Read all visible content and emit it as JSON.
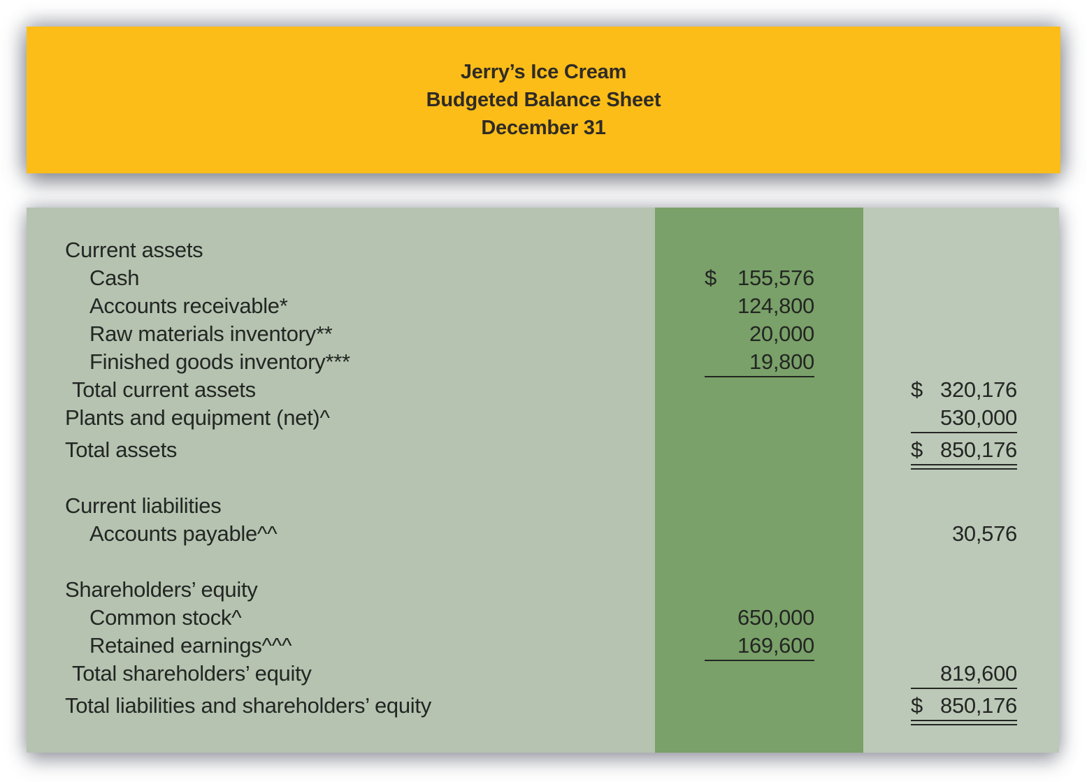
{
  "header": {
    "company": "Jerry’s Ice Cream",
    "statement": "Budgeted Balance Sheet",
    "date": "December 31"
  },
  "colors": {
    "header_bg": "#FCBD18",
    "header_ink": "#2F2B26",
    "panel_bg": "#B5C3B0",
    "band_col1_bg": "#7AA169",
    "band_col2_bg": "#BDC9B8",
    "ink": "#232623"
  },
  "sheet": {
    "rows": [
      {
        "label": "Current assets"
      },
      {
        "label": "Cash",
        "col1_cur": "$",
        "col1": "155,576"
      },
      {
        "label": "Accounts receivable*",
        "col1": "124,800"
      },
      {
        "label": "Raw materials inventory**",
        "col1": "20,000"
      },
      {
        "label": "Finished goods inventory***",
        "col1": "19,800"
      },
      {
        "label": "Total current assets",
        "col2_cur": "$",
        "col2": "320,176"
      },
      {
        "label": "Plants and equipment (net)^",
        "col2": "530,000"
      },
      {
        "label": "Total assets",
        "col2_cur": "$",
        "col2": "850,176"
      },
      {
        "label": "Current liabilities"
      },
      {
        "label": "Accounts payable^^",
        "col2": "30,576"
      },
      {
        "label": "Shareholders’ equity"
      },
      {
        "label": "Common stock^",
        "col1": "650,000"
      },
      {
        "label": "Retained earnings^^^",
        "col1": "169,600"
      },
      {
        "label": "Total shareholders’ equity",
        "col2": "819,600"
      },
      {
        "label": "Total liabilities and shareholders’ equity",
        "col2_cur": "$",
        "col2": "850,176"
      }
    ]
  }
}
